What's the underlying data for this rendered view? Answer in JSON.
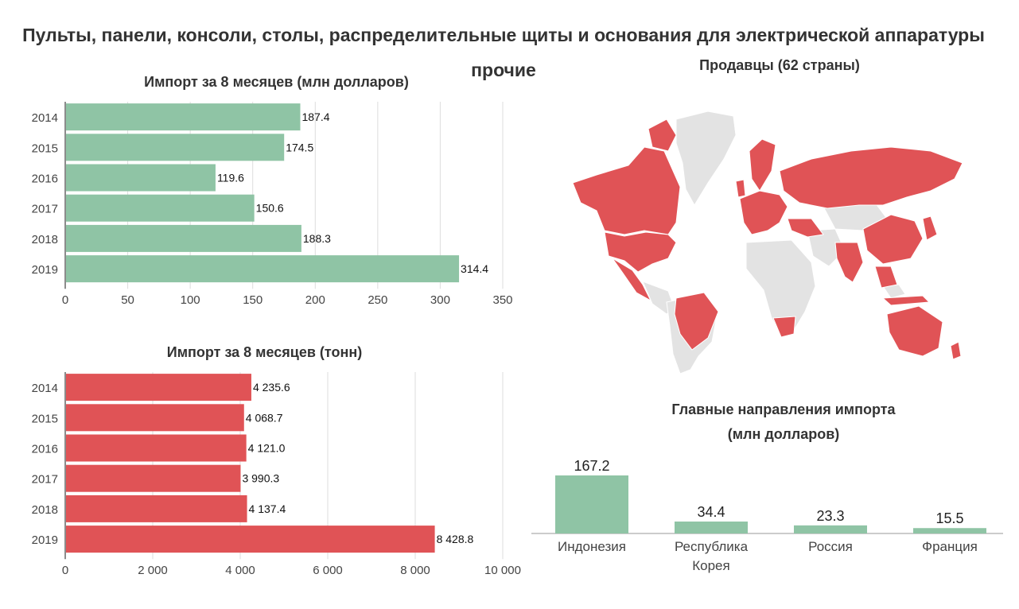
{
  "title": "Пульты, панели, консоли, столы, распределительные щиты и основания для электрической аппаратуры прочие",
  "colors": {
    "green": "#8fc4a5",
    "red": "#e05356",
    "grid": "#dddddd",
    "land_grey": "#e3e3e3"
  },
  "chart_data": [
    {
      "type": "bar",
      "orientation": "horizontal",
      "title": "Импорт за 8 месяцев (млн долларов)",
      "categories": [
        "2014",
        "2015",
        "2016",
        "2017",
        "2018",
        "2019"
      ],
      "values": [
        187.4,
        174.5,
        119.6,
        150.6,
        188.3,
        314.4
      ],
      "value_labels": [
        "187.4",
        "174.5",
        "119.6",
        "150.6",
        "188.3",
        "314.4"
      ],
      "xlim": [
        0,
        350
      ],
      "xticks": [
        0,
        50,
        100,
        150,
        200,
        250,
        300,
        350
      ],
      "xtick_labels": [
        "0",
        "50",
        "100",
        "150",
        "200",
        "250",
        "300",
        "350"
      ],
      "grid": true,
      "color": "#8fc4a5"
    },
    {
      "type": "bar",
      "orientation": "horizontal",
      "title": "Импорт за 8 месяцев (тонн)",
      "categories": [
        "2014",
        "2015",
        "2016",
        "2017",
        "2018",
        "2019"
      ],
      "values": [
        4235.6,
        4068.7,
        4121.0,
        3990.3,
        4137.4,
        8428.8
      ],
      "value_labels": [
        "4 235.6",
        "4 068.7",
        "4 121.0",
        "3 990.3",
        "4 137.4",
        "8 428.8"
      ],
      "xlim": [
        0,
        10000
      ],
      "xticks": [
        0,
        2000,
        4000,
        6000,
        8000,
        10000
      ],
      "xtick_labels": [
        "0",
        "2 000",
        "4 000",
        "6 000",
        "8 000",
        "10 000"
      ],
      "grid": true,
      "color": "#e05356"
    },
    {
      "type": "bar",
      "orientation": "vertical",
      "title": "Главные направления импорта",
      "subtitle": "(млн долларов)",
      "categories": [
        "Индонезия",
        "Республика Корея",
        "Россия",
        "Франция"
      ],
      "category_lines": [
        [
          "Индонезия"
        ],
        [
          "Республика",
          "Корея"
        ],
        [
          "Россия"
        ],
        [
          "Франция"
        ]
      ],
      "values": [
        167.2,
        34.4,
        23.3,
        15.5
      ],
      "value_labels": [
        "167.2",
        "34.4",
        "23.3",
        "15.5"
      ],
      "ylim": [
        0,
        167.2
      ],
      "grid": false,
      "color": "#8fc4a5"
    }
  ],
  "map": {
    "type": "choropleth",
    "title": "Продавцы (62 страны)",
    "highlight_color": "#e05356",
    "base_color": "#e3e3e3"
  }
}
